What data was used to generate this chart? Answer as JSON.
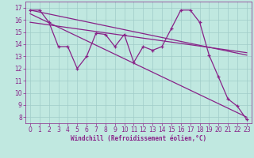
{
  "xlabel": "Windchill (Refroidissement éolien,°C)",
  "bg_color": "#c0e8e0",
  "line_color": "#882288",
  "grid_color": "#a0ccc8",
  "xlim": [
    -0.5,
    23.5
  ],
  "ylim": [
    7.5,
    17.5
  ],
  "xticks": [
    0,
    1,
    2,
    3,
    4,
    5,
    6,
    7,
    8,
    9,
    10,
    11,
    12,
    13,
    14,
    15,
    16,
    17,
    18,
    19,
    20,
    21,
    22,
    23
  ],
  "yticks": [
    8,
    9,
    10,
    11,
    12,
    13,
    14,
    15,
    16,
    17
  ],
  "data_x": [
    0,
    1,
    2,
    3,
    4,
    5,
    6,
    7,
    8,
    9,
    10,
    11,
    12,
    13,
    14,
    15,
    16,
    17,
    18,
    19,
    20,
    21,
    22,
    23
  ],
  "data_y": [
    16.8,
    16.8,
    15.8,
    13.8,
    13.8,
    12.0,
    13.0,
    14.9,
    14.8,
    13.8,
    14.8,
    12.5,
    13.8,
    13.5,
    13.8,
    15.3,
    16.8,
    16.8,
    15.8,
    13.1,
    11.3,
    9.5,
    8.9,
    7.8
  ],
  "trend1_x": [
    0,
    23
  ],
  "trend1_y": [
    16.8,
    13.1
  ],
  "trend2_x": [
    0,
    23
  ],
  "trend2_y": [
    16.5,
    8.0
  ],
  "trend3_x": [
    0,
    23
  ],
  "trend3_y": [
    15.8,
    13.3
  ],
  "tick_fontsize": 5.5,
  "xlabel_fontsize": 5.5
}
